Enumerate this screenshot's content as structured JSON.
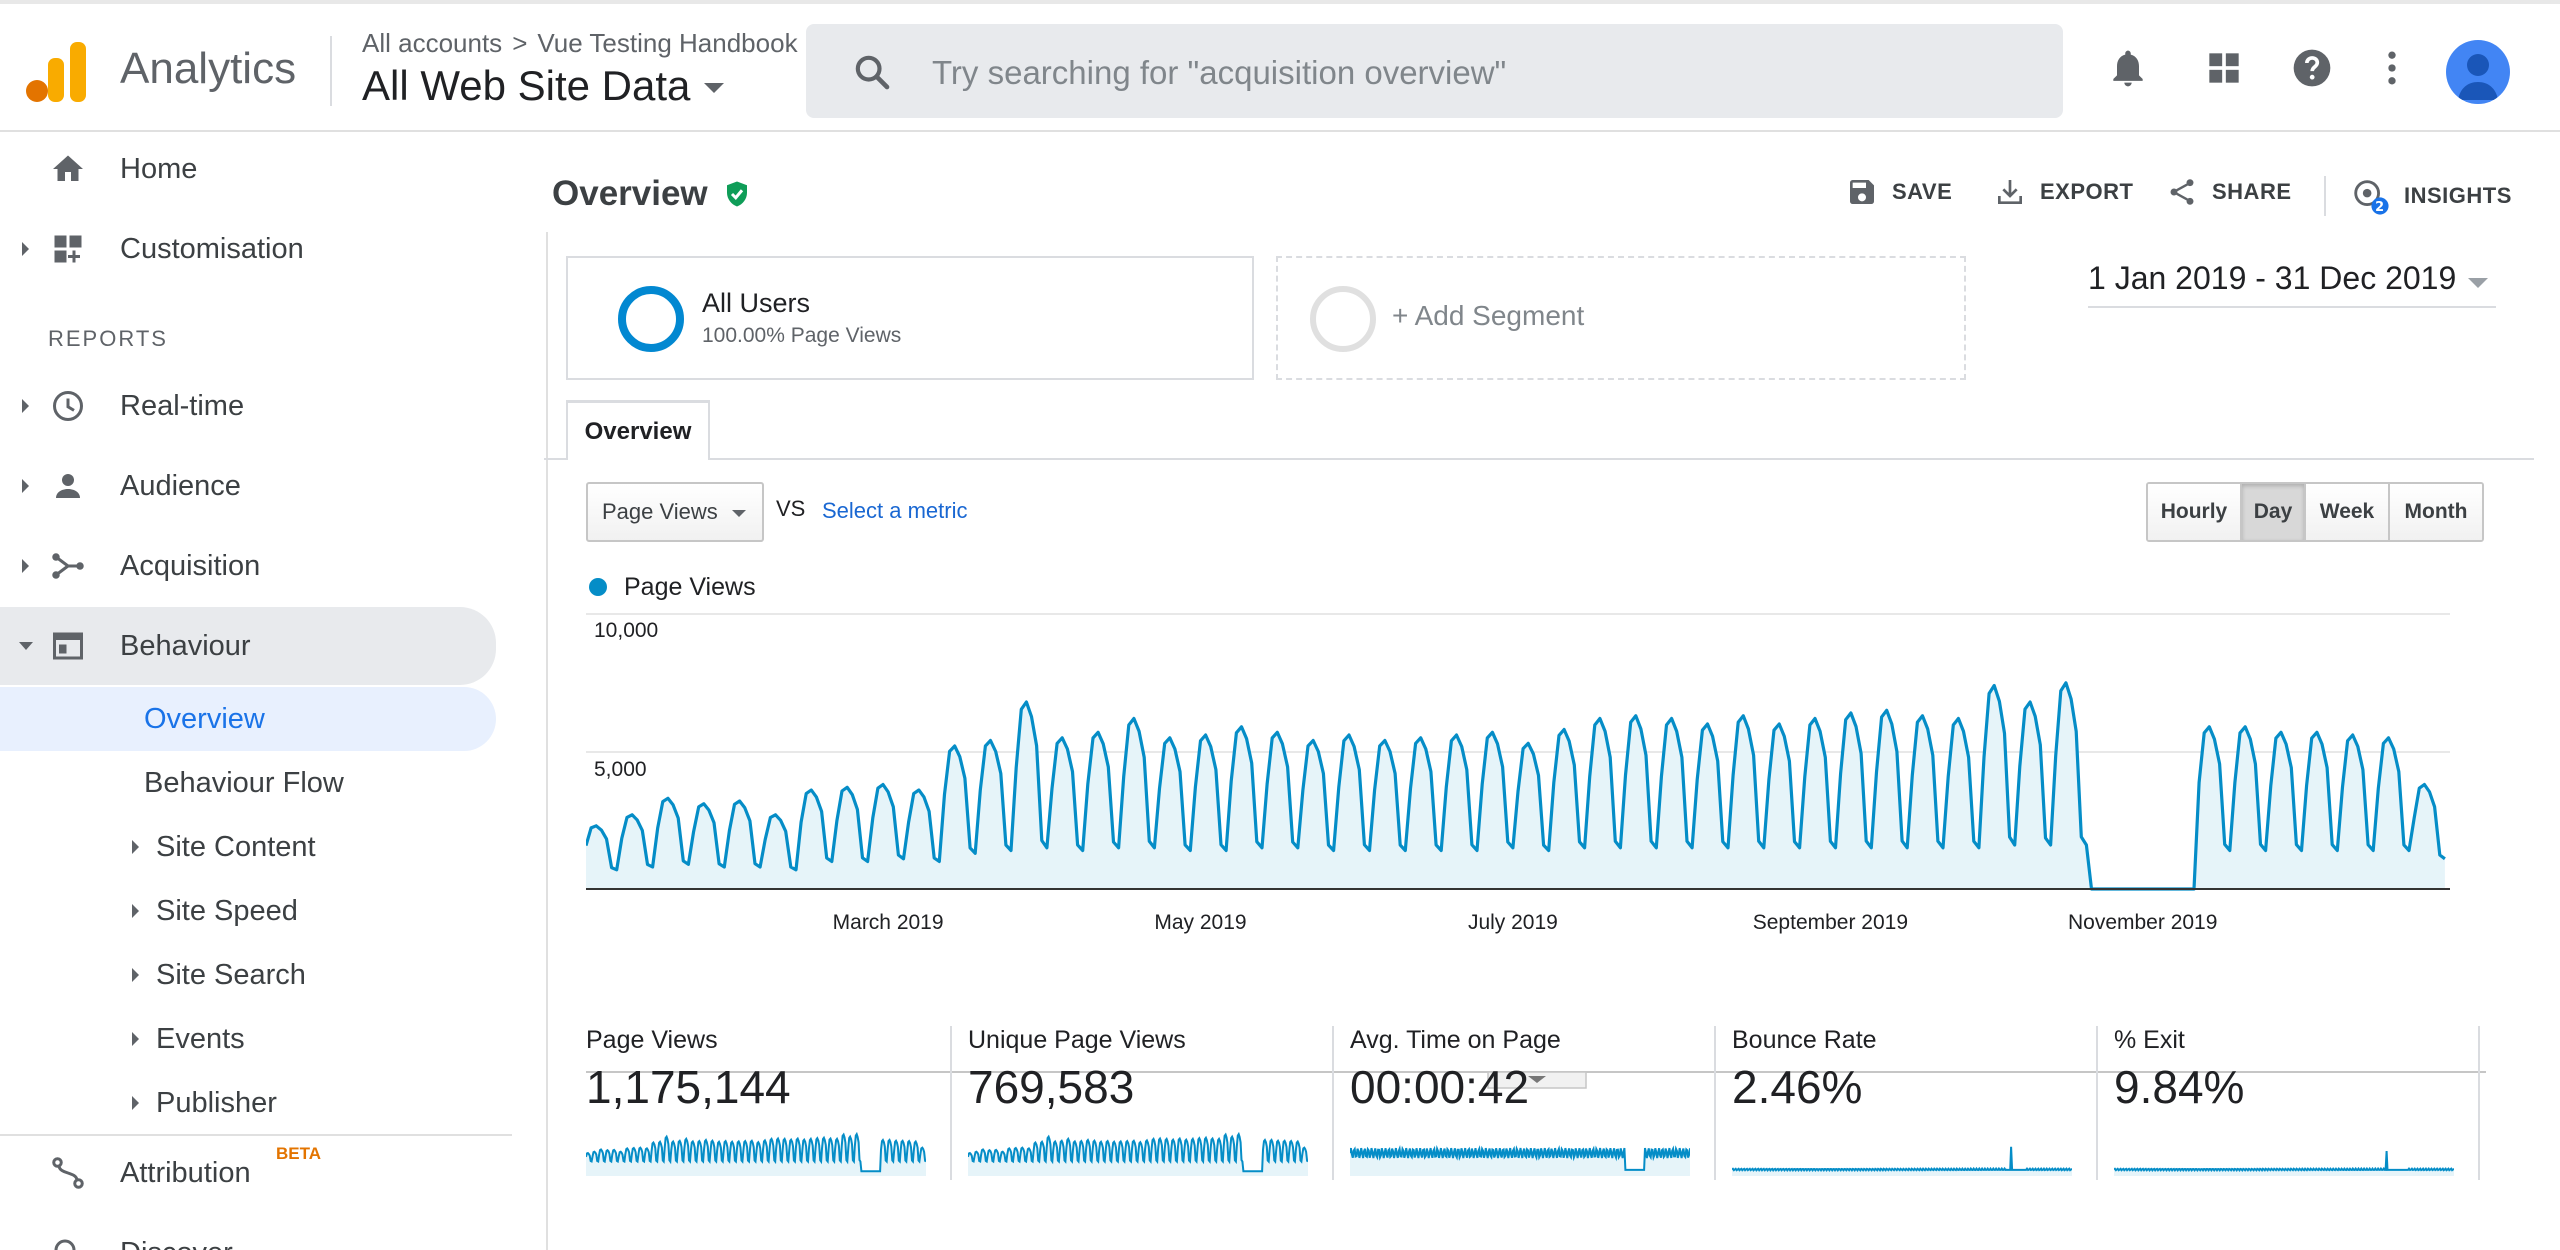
{
  "header": {
    "app_name": "Analytics",
    "breadcrumb": [
      "All accounts",
      "Vue Testing Handbook"
    ],
    "breadcrumb_sep": ">",
    "property": "All Web Site Data",
    "search_placeholder": "Try searching for \"acquisition overview\"",
    "icons": [
      "bell-icon",
      "apps-grid-icon",
      "help-icon",
      "more-vert-icon",
      "account-avatar"
    ]
  },
  "sidebar": {
    "top_items": [
      {
        "label": "Home",
        "icon": "home-icon"
      },
      {
        "label": "Customisation",
        "icon": "dashboard-plus-icon"
      }
    ],
    "reports_label": "REPORTS",
    "report_items": [
      {
        "label": "Real-time",
        "icon": "clock-icon"
      },
      {
        "label": "Audience",
        "icon": "person-icon"
      },
      {
        "label": "Acquisition",
        "icon": "acquisition-icon"
      },
      {
        "label": "Behaviour",
        "icon": "behaviour-icon"
      }
    ],
    "behaviour_sub": [
      {
        "label": "Overview"
      },
      {
        "label": "Behaviour Flow"
      },
      {
        "label": "Site Content"
      },
      {
        "label": "Site Speed"
      },
      {
        "label": "Site Search"
      },
      {
        "label": "Events"
      },
      {
        "label": "Publisher"
      }
    ],
    "bottom_items": [
      {
        "label": "Attribution",
        "badge": "BETA",
        "icon": "attribution-icon"
      },
      {
        "label": "Discover",
        "icon": "discover-icon"
      }
    ]
  },
  "main": {
    "title": "Overview",
    "actions": [
      "SAVE",
      "EXPORT",
      "SHARE",
      "INSIGHTS"
    ],
    "insights_badge": "2",
    "segment": {
      "name": "All Users",
      "sub": "100.00% Page Views"
    },
    "add_segment": "+ Add Segment",
    "date_range": "1 Jan 2019 - 31 Dec 2019",
    "tab": "Overview",
    "metric_select": "Page Views",
    "vs": "VS",
    "select_metric": "Select a metric",
    "granularity": [
      "Hourly",
      "Day",
      "Week",
      "Month"
    ],
    "granularity_selected": "Day",
    "kpis": [
      {
        "label": "Page Views",
        "value": "1,175,144"
      },
      {
        "label": "Unique Page Views",
        "value": "769,583"
      },
      {
        "label": "Avg. Time on Page",
        "value": "00:00:42"
      },
      {
        "label": "Bounce Rate",
        "value": "2.46%"
      },
      {
        "label": "% Exit",
        "value": "9.84%"
      }
    ]
  },
  "colors": {
    "series": "#058dc7",
    "series_fill": "#e6f4f9",
    "accent": "#1a73e8",
    "shield": "#0f9d58"
  },
  "chart_data": {
    "type": "line",
    "legend": [
      "Page Views"
    ],
    "y_ticks": [
      "10,000",
      "5,000"
    ],
    "y_range": [
      0,
      10000
    ],
    "x_ticks": [
      "March 2019",
      "May 2019",
      "July 2019",
      "September 2019",
      "November 2019"
    ],
    "x_range": [
      "2019-01-01",
      "2019-12-31"
    ],
    "weekly": [
      {
        "w": "2019-01-01",
        "hi": 2300,
        "lo": 700
      },
      {
        "w": "2019-01-08",
        "hi": 2700,
        "lo": 800
      },
      {
        "w": "2019-01-15",
        "hi": 3300,
        "lo": 900
      },
      {
        "w": "2019-01-22",
        "hi": 3100,
        "lo": 800
      },
      {
        "w": "2019-01-29",
        "hi": 3200,
        "lo": 800
      },
      {
        "w": "2019-02-05",
        "hi": 2700,
        "lo": 700
      },
      {
        "w": "2019-02-12",
        "hi": 3600,
        "lo": 1000
      },
      {
        "w": "2019-02-19",
        "hi": 3700,
        "lo": 1000
      },
      {
        "w": "2019-02-26",
        "hi": 3800,
        "lo": 1100
      },
      {
        "w": "2019-03-05",
        "hi": 3600,
        "lo": 1000
      },
      {
        "w": "2019-03-12",
        "hi": 5200,
        "lo": 1300
      },
      {
        "w": "2019-03-19",
        "hi": 5400,
        "lo": 1400
      },
      {
        "w": "2019-03-26",
        "hi": 6800,
        "lo": 1500
      },
      {
        "w": "2019-04-02",
        "hi": 5500,
        "lo": 1400
      },
      {
        "w": "2019-04-09",
        "hi": 5700,
        "lo": 1500
      },
      {
        "w": "2019-04-16",
        "hi": 6200,
        "lo": 1500
      },
      {
        "w": "2019-04-23",
        "hi": 5500,
        "lo": 1400
      },
      {
        "w": "2019-04-30",
        "hi": 5600,
        "lo": 1400
      },
      {
        "w": "2019-05-07",
        "hi": 5900,
        "lo": 1500
      },
      {
        "w": "2019-05-14",
        "hi": 5700,
        "lo": 1500
      },
      {
        "w": "2019-05-21",
        "hi": 5400,
        "lo": 1400
      },
      {
        "w": "2019-05-28",
        "hi": 5600,
        "lo": 1400
      },
      {
        "w": "2019-06-04",
        "hi": 5400,
        "lo": 1400
      },
      {
        "w": "2019-06-11",
        "hi": 5500,
        "lo": 1400
      },
      {
        "w": "2019-06-18",
        "hi": 5600,
        "lo": 1400
      },
      {
        "w": "2019-06-25",
        "hi": 5700,
        "lo": 1500
      },
      {
        "w": "2019-07-02",
        "hi": 5300,
        "lo": 1400
      },
      {
        "w": "2019-07-09",
        "hi": 5800,
        "lo": 1500
      },
      {
        "w": "2019-07-16",
        "hi": 6200,
        "lo": 1500
      },
      {
        "w": "2019-07-23",
        "hi": 6300,
        "lo": 1500
      },
      {
        "w": "2019-07-30",
        "hi": 6200,
        "lo": 1500
      },
      {
        "w": "2019-08-06",
        "hi": 6000,
        "lo": 1500
      },
      {
        "w": "2019-08-13",
        "hi": 6300,
        "lo": 1500
      },
      {
        "w": "2019-08-20",
        "hi": 6000,
        "lo": 1500
      },
      {
        "w": "2019-08-27",
        "hi": 6200,
        "lo": 1500
      },
      {
        "w": "2019-09-03",
        "hi": 6400,
        "lo": 1500
      },
      {
        "w": "2019-09-10",
        "hi": 6500,
        "lo": 1500
      },
      {
        "w": "2019-09-17",
        "hi": 6300,
        "lo": 1500
      },
      {
        "w": "2019-09-24",
        "hi": 6200,
        "lo": 1500
      },
      {
        "w": "2019-10-01",
        "hi": 7400,
        "lo": 1600
      },
      {
        "w": "2019-10-08",
        "hi": 6800,
        "lo": 1600
      },
      {
        "w": "2019-10-15",
        "hi": 7500,
        "lo": 1600
      },
      {
        "w": "2019-10-22",
        "hi": 0,
        "lo": 0
      },
      {
        "w": "2019-10-29",
        "hi": 0,
        "lo": 0
      },
      {
        "w": "2019-11-05",
        "hi": 0,
        "lo": 0
      },
      {
        "w": "2019-11-12",
        "hi": 5900,
        "lo": 1400
      },
      {
        "w": "2019-11-19",
        "hi": 5900,
        "lo": 1400
      },
      {
        "w": "2019-11-26",
        "hi": 5700,
        "lo": 1400
      },
      {
        "w": "2019-12-03",
        "hi": 5700,
        "lo": 1400
      },
      {
        "w": "2019-12-10",
        "hi": 5600,
        "lo": 1400
      },
      {
        "w": "2019-12-17",
        "hi": 5500,
        "lo": 1400
      },
      {
        "w": "2019-12-24",
        "hi": 3800,
        "lo": 1100
      }
    ]
  }
}
